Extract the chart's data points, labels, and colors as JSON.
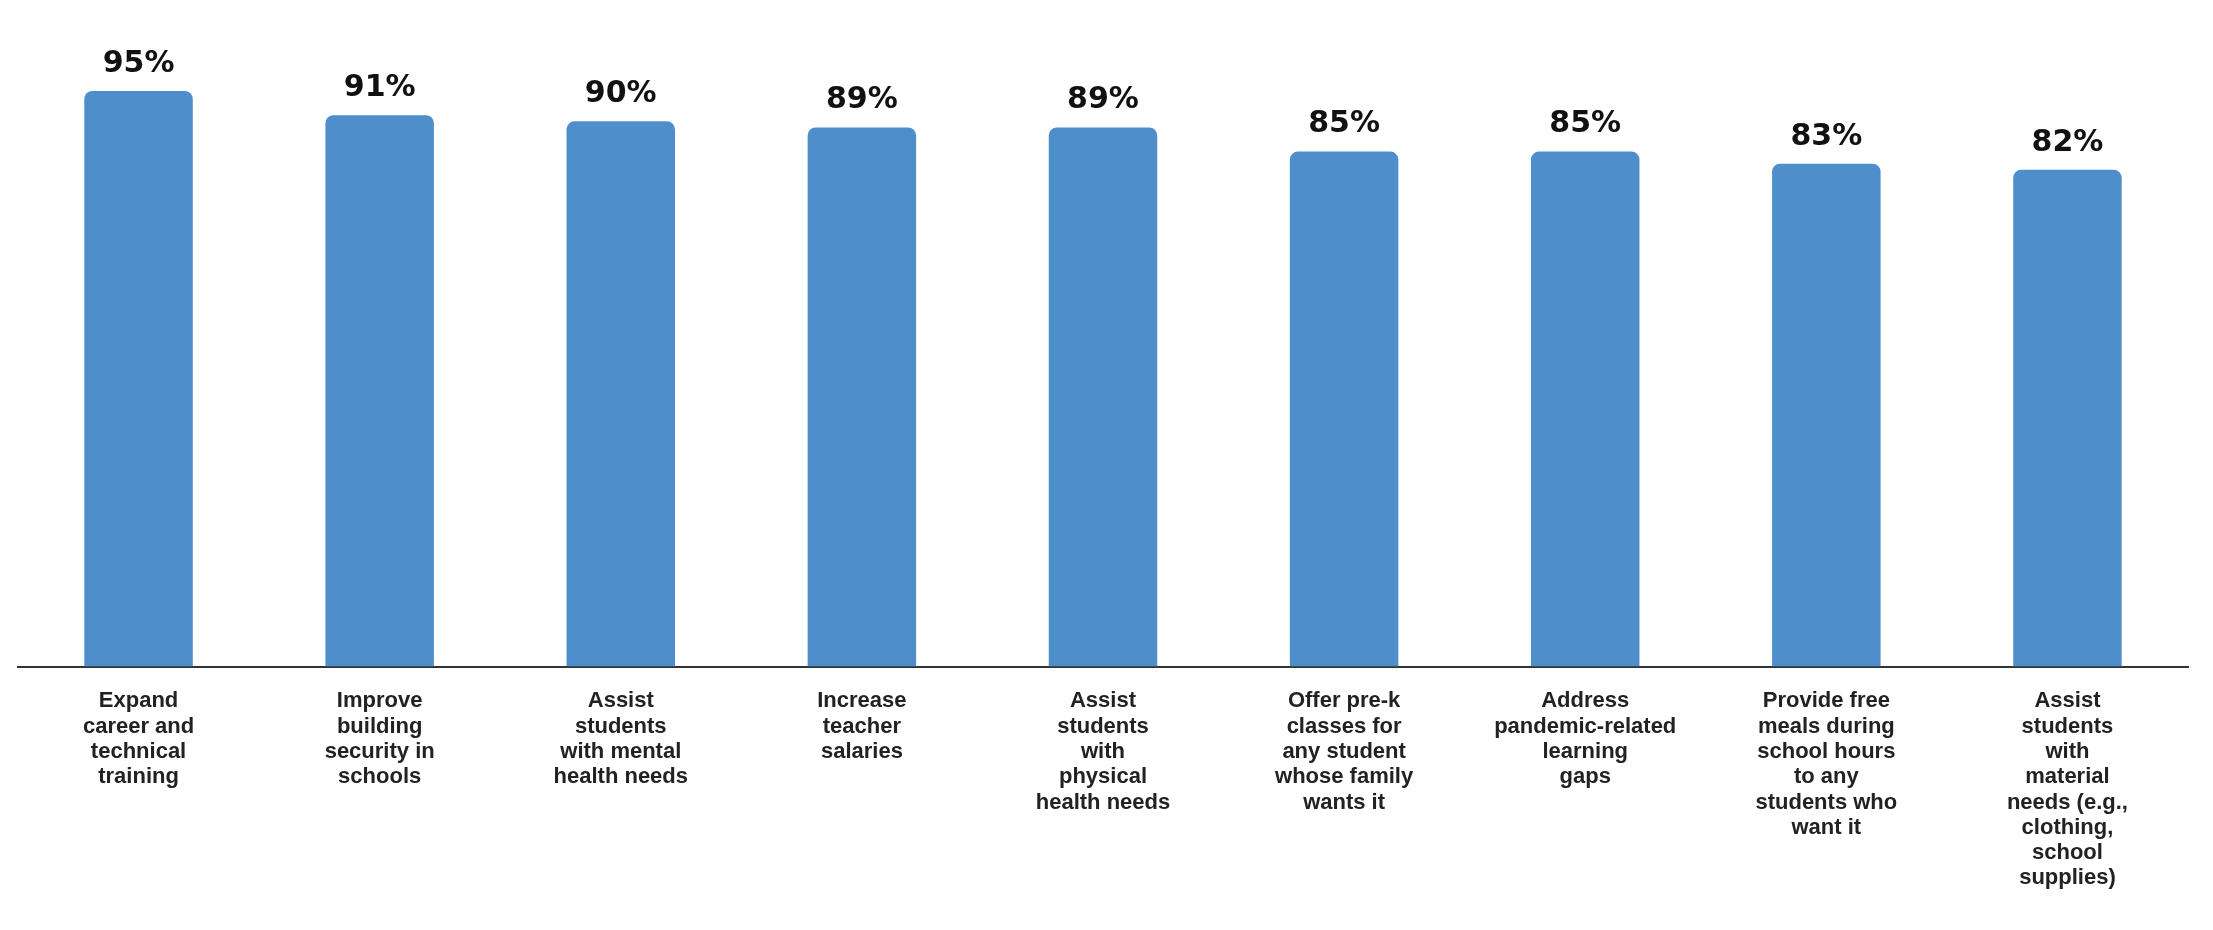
{
  "chart_data": {
    "type": "bar",
    "categories": [
      "Expand career and technical training",
      "Improve building security in schools",
      "Assist students with mental health needs",
      "Increase teacher salaries",
      "Assist students with physical health needs",
      "Offer pre-k classes for any student whose family wants it",
      "Address pandemic-related learning gaps",
      "Provide free meals during school hours to any students who want it",
      "Assist students with material needs (e.g., clothing, school supplies)"
    ],
    "values": [
      95,
      91,
      90,
      89,
      89,
      85,
      85,
      83,
      82
    ],
    "value_labels": [
      "95%",
      "91%",
      "90%",
      "89%",
      "89%",
      "85%",
      "85%",
      "83%",
      "82%"
    ],
    "color": "#4e8fcb"
  }
}
